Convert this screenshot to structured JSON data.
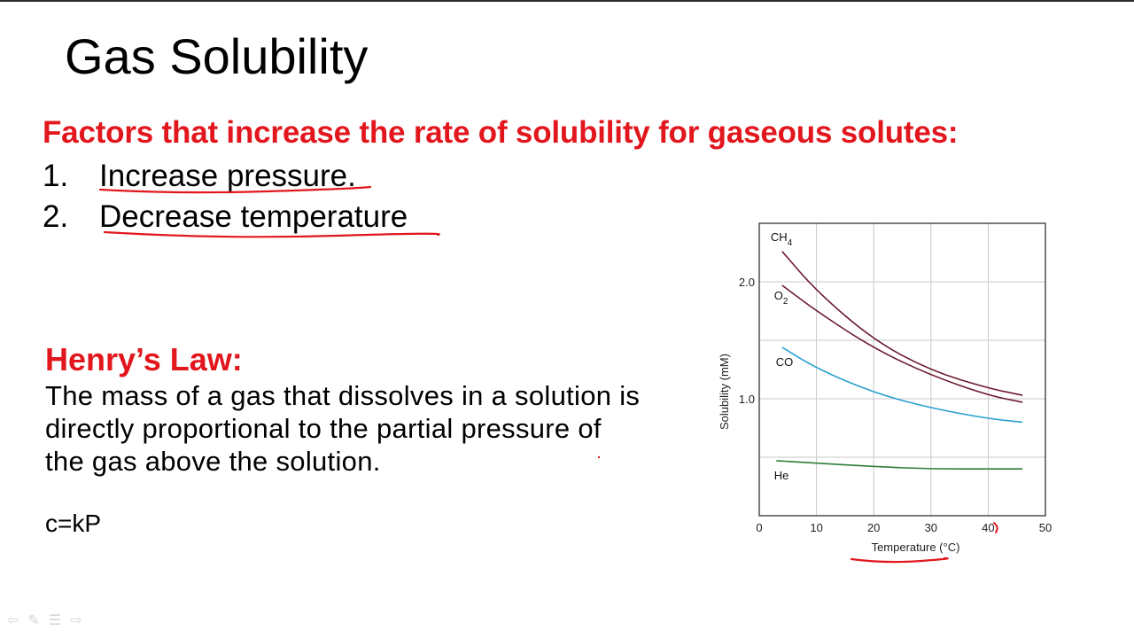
{
  "slide": {
    "title": "Gas Solubility",
    "factors_heading": "Factors that increase the rate of solubility for gaseous solutes:",
    "factors": [
      {
        "number": "1.",
        "text": "Increase pressure."
      },
      {
        "number": "2.",
        "text": "Decrease temperature"
      }
    ],
    "henry_heading": "Henry’s Law:",
    "henry_lines": [
      "The mass of a gas that dissolves in a solution is",
      "directly proportional to the partial pressure of",
      "the gas above the solution."
    ],
    "formula": "c=kP",
    "annotation_color": "#e2171e"
  },
  "nav_icons": [
    "back-arrow-icon",
    "pen-icon",
    "menu-icon",
    "forward-arrow-icon"
  ],
  "chart_data": {
    "type": "line",
    "xlabel": "Temperature (°C)",
    "ylabel": "Solubility (mM)",
    "xlim": [
      0,
      50
    ],
    "ylim": [
      0,
      2.5
    ],
    "x_ticks": [
      0,
      10,
      20,
      30,
      40,
      50
    ],
    "y_ticks": [
      1.0,
      2.0
    ],
    "y_tick_labels": [
      "1.0",
      "2.0"
    ],
    "grid": true,
    "series": [
      {
        "name": "CH4",
        "label_main": "CH",
        "label_sub": "4",
        "color": "#6b1a2e",
        "points": [
          [
            4,
            2.26
          ],
          [
            10,
            1.92
          ],
          [
            20,
            1.5
          ],
          [
            30,
            1.24
          ],
          [
            40,
            1.09
          ],
          [
            46,
            1.03
          ]
        ]
      },
      {
        "name": "O2",
        "label_main": "O",
        "label_sub": "2",
        "color": "#6b1a2e",
        "points": [
          [
            4,
            1.97
          ],
          [
            10,
            1.75
          ],
          [
            20,
            1.43
          ],
          [
            30,
            1.2
          ],
          [
            40,
            1.03
          ],
          [
            46,
            0.97
          ]
        ]
      },
      {
        "name": "CO",
        "label_main": "CO",
        "label_sub": "",
        "color": "#2a9fd0",
        "points": [
          [
            4,
            1.44
          ],
          [
            10,
            1.26
          ],
          [
            20,
            1.05
          ],
          [
            30,
            0.92
          ],
          [
            40,
            0.83
          ],
          [
            46,
            0.8
          ]
        ]
      },
      {
        "name": "He",
        "label_main": "He",
        "label_sub": "",
        "color": "#2e7d3a",
        "points": [
          [
            3,
            0.47
          ],
          [
            10,
            0.45
          ],
          [
            20,
            0.42
          ],
          [
            30,
            0.4
          ],
          [
            40,
            0.4
          ],
          [
            46,
            0.4
          ]
        ]
      }
    ]
  }
}
